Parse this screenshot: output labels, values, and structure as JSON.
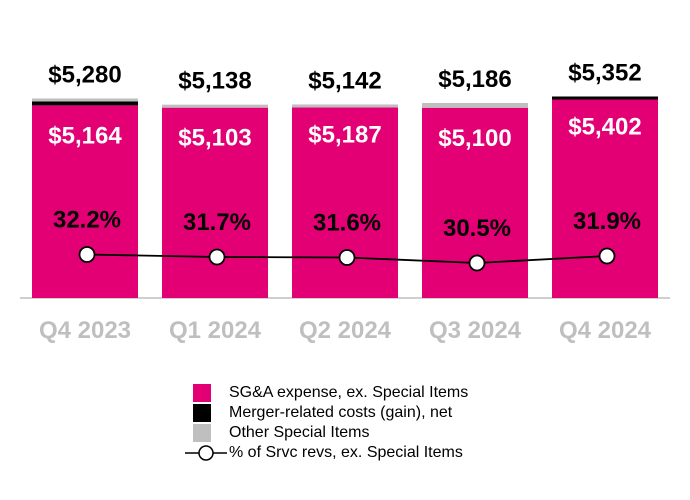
{
  "chart_data": {
    "type": "bar",
    "categories": [
      "Q4 2023",
      "Q1 2024",
      "Q2 2024",
      "Q3 2024",
      "Q4 2024"
    ],
    "series": [
      {
        "name": "SG&A expense, ex. Special Items",
        "values": [
          5164,
          5103,
          5187,
          5100,
          5402
        ],
        "labels": [
          "$5,164",
          "$5,103",
          "$5,187",
          "$5,100",
          "$5,402"
        ],
        "color": "#e20074"
      },
      {
        "name": "Merger-related costs (gain), net",
        "values": [
          70,
          0,
          0,
          0,
          -50
        ],
        "color": "#000000"
      },
      {
        "name": "Other Special Items",
        "values": [
          46,
          35,
          -45,
          86,
          0
        ],
        "color": "#bfbfbf"
      }
    ],
    "totals": [
      "$5,280",
      "$5,138",
      "$5,142",
      "$5,186",
      "$5,352"
    ],
    "line_series": {
      "name": "% of Srvc revs, ex. Special Items",
      "values": [
        32.2,
        31.7,
        31.6,
        30.5,
        31.9
      ],
      "labels": [
        "32.2%",
        "31.7%",
        "31.6%",
        "30.5%",
        "31.9%"
      ]
    },
    "legend": [
      {
        "label": "SG&A expense, ex. Special Items",
        "color": "#e20074",
        "kind": "box"
      },
      {
        "label": "Merger-related costs (gain), net",
        "color": "#000000",
        "kind": "box"
      },
      {
        "label": "Other Special Items",
        "color": "#bfbfbf",
        "kind": "box"
      },
      {
        "label": "% of Srvc revs, ex. Special Items",
        "color": "#000000",
        "kind": "line"
      }
    ],
    "tick_color": "#bfbfbf",
    "title": "",
    "xlabel": "",
    "ylabel": ""
  }
}
